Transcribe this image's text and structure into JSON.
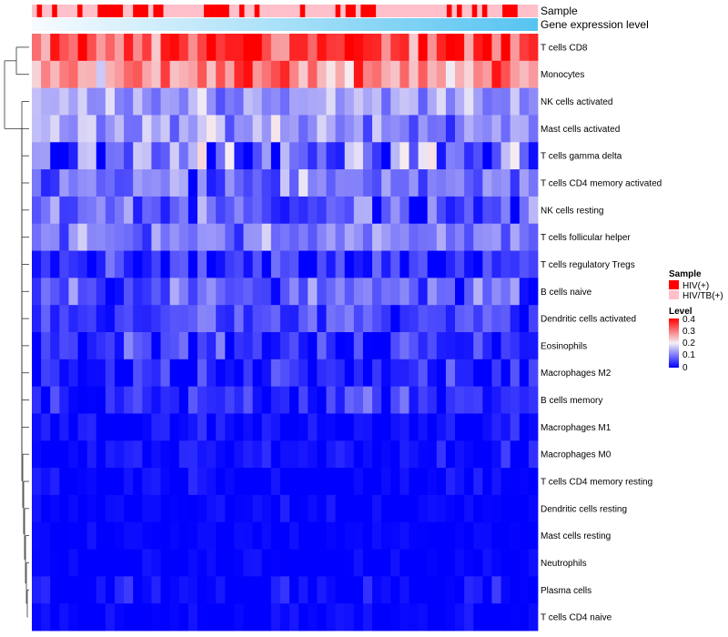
{
  "chart_data": {
    "type": "heatmap",
    "title": "",
    "column_annotations": [
      {
        "name": "Sample",
        "type": "categorical"
      },
      {
        "name": "Gene expression level",
        "type": "gradient",
        "colors": [
          "#f7fbff",
          "#56c4f0"
        ]
      }
    ],
    "sample_groups": [
      {
        "name": "HIV(+)",
        "color": "#ff0000"
      },
      {
        "name": "HIV/TB(+)",
        "color": "#ffc0cb"
      }
    ],
    "sample_pattern": [
      1,
      0,
      1,
      1,
      0,
      1,
      1,
      1,
      1,
      0,
      1,
      1,
      1,
      0,
      0,
      0,
      0,
      0,
      1,
      1,
      0,
      0,
      0,
      1,
      0,
      0,
      1,
      1,
      1,
      1,
      1,
      1,
      1,
      1,
      0,
      0,
      0,
      0,
      0,
      1,
      1,
      0,
      1,
      1,
      0,
      1,
      1,
      1,
      1,
      1,
      1,
      1,
      1,
      0,
      1,
      1,
      1,
      1,
      1,
      1,
      0,
      1,
      0,
      0,
      1,
      0,
      0,
      0,
      1,
      1,
      1,
      1,
      1,
      1,
      1,
      1,
      1,
      1,
      1,
      1,
      1,
      1,
      0,
      1,
      0,
      1,
      1,
      0,
      1,
      0,
      1,
      1,
      1,
      0,
      0,
      0,
      1,
      1,
      1,
      1
    ],
    "rows": [
      {
        "label": "T cells CD8",
        "mean": 0.34,
        "sd": 0.07,
        "seed": 1
      },
      {
        "label": "Monocytes",
        "mean": 0.27,
        "sd": 0.07,
        "seed": 2
      },
      {
        "label": "NK cells activated",
        "mean": 0.13,
        "sd": 0.04,
        "seed": 3
      },
      {
        "label": "Mast cells activated",
        "mean": 0.13,
        "sd": 0.05,
        "seed": 4
      },
      {
        "label": "T cells gamma delta",
        "mean": 0.1,
        "sd": 0.08,
        "seed": 5
      },
      {
        "label": "T cells CD4 memory activated",
        "mean": 0.09,
        "sd": 0.05,
        "seed": 6
      },
      {
        "label": "NK cells resting",
        "mean": 0.07,
        "sd": 0.06,
        "seed": 7
      },
      {
        "label": "T cells follicular helper",
        "mean": 0.1,
        "sd": 0.04,
        "seed": 8
      },
      {
        "label": "T cells regulatory  Tregs",
        "mean": 0.03,
        "sd": 0.04,
        "seed": 9
      },
      {
        "label": "B cells naive",
        "mean": 0.07,
        "sd": 0.05,
        "seed": 10
      },
      {
        "label": "Dendritic cells activated",
        "mean": 0.06,
        "sd": 0.04,
        "seed": 11
      },
      {
        "label": "Eosinophils",
        "mean": 0.04,
        "sd": 0.04,
        "seed": 12
      },
      {
        "label": "Macrophages M2",
        "mean": 0.03,
        "sd": 0.04,
        "seed": 13
      },
      {
        "label": "B cells memory",
        "mean": 0.03,
        "sd": 0.04,
        "seed": 14
      },
      {
        "label": "Macrophages M1",
        "mean": 0.01,
        "sd": 0.03,
        "seed": 15
      },
      {
        "label": "Macrophages M0",
        "mean": 0.01,
        "sd": 0.025,
        "seed": 16
      },
      {
        "label": "T cells CD4 memory resting",
        "mean": 0.0,
        "sd": 0.02,
        "seed": 17
      },
      {
        "label": "Dendritic cells resting",
        "mean": 0.0,
        "sd": 0.015,
        "seed": 18
      },
      {
        "label": "Mast cells resting",
        "mean": 0.0,
        "sd": 0.01,
        "seed": 19
      },
      {
        "label": "Neutrophils",
        "mean": 0.0,
        "sd": 0.01,
        "seed": 20
      },
      {
        "label": "Plasma cells",
        "mean": 0.01,
        "sd": 0.03,
        "seed": 21
      },
      {
        "label": "T cells CD4 naive",
        "mean": 0.0,
        "sd": 0.02,
        "seed": 22
      }
    ],
    "n_columns": 55,
    "color_scale": {
      "min": 0,
      "max": 0.4,
      "low": "#0000ff",
      "mid": "#f5f0f5",
      "mid_value": 0.2,
      "high": "#ff0000"
    },
    "legend": {
      "sample_title": "Sample",
      "level_title": "Level",
      "level_ticks": [
        "0.4",
        "0.3",
        "0.2",
        "0.1",
        "0"
      ],
      "placement": "right"
    }
  }
}
